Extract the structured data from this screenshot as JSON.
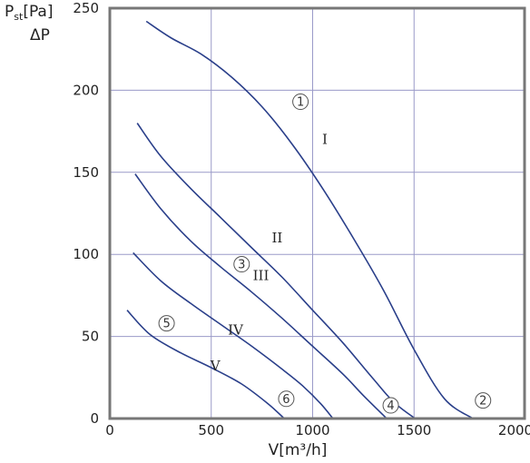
{
  "chart_data": {
    "type": "line",
    "xlabel": "V[m³/h]",
    "ylabel_main": "P",
    "ylabel_sub": "st",
    "ylabel_unit": "[Pa]",
    "ylabel2": "ΔP",
    "xlim": [
      0,
      2000
    ],
    "ylim": [
      0,
      250
    ],
    "x_ticks": [
      0,
      500,
      1000,
      1500,
      2000
    ],
    "y_ticks": [
      0,
      50,
      100,
      150,
      200,
      250
    ],
    "grid": true,
    "series": [
      {
        "name": "I",
        "points": [
          [
            180,
            242
          ],
          [
            300,
            232
          ],
          [
            450,
            222
          ],
          [
            600,
            208
          ],
          [
            750,
            190
          ],
          [
            900,
            167
          ],
          [
            1050,
            140
          ],
          [
            1200,
            110
          ],
          [
            1350,
            78
          ],
          [
            1500,
            42
          ],
          [
            1650,
            12
          ],
          [
            1790,
            0
          ]
        ]
      },
      {
        "name": "II",
        "points": [
          [
            135,
            180
          ],
          [
            250,
            160
          ],
          [
            400,
            140
          ],
          [
            550,
            122
          ],
          [
            700,
            104
          ],
          [
            850,
            86
          ],
          [
            1000,
            66
          ],
          [
            1150,
            46
          ],
          [
            1300,
            24
          ],
          [
            1400,
            10
          ],
          [
            1505,
            0
          ]
        ]
      },
      {
        "name": "III",
        "points": [
          [
            125,
            149
          ],
          [
            250,
            128
          ],
          [
            400,
            108
          ],
          [
            550,
            92
          ],
          [
            700,
            77
          ],
          [
            850,
            61
          ],
          [
            1000,
            44
          ],
          [
            1150,
            27
          ],
          [
            1250,
            14
          ],
          [
            1365,
            0
          ]
        ]
      },
      {
        "name": "IV",
        "points": [
          [
            115,
            101
          ],
          [
            250,
            84
          ],
          [
            400,
            70
          ],
          [
            550,
            57
          ],
          [
            700,
            44
          ],
          [
            850,
            30
          ],
          [
            950,
            20
          ],
          [
            1040,
            9
          ],
          [
            1100,
            0
          ]
        ]
      },
      {
        "name": "V",
        "points": [
          [
            85,
            66
          ],
          [
            200,
            51
          ],
          [
            350,
            40
          ],
          [
            500,
            31
          ],
          [
            650,
            21
          ],
          [
            780,
            9
          ],
          [
            860,
            0
          ]
        ]
      }
    ],
    "curve_labels": [
      {
        "text": "I",
        "x": 1060,
        "y": 170
      },
      {
        "text": "II",
        "x": 825,
        "y": 110
      },
      {
        "text": "III",
        "x": 745,
        "y": 87
      },
      {
        "text": "IV",
        "x": 620,
        "y": 54
      },
      {
        "text": "V",
        "x": 520,
        "y": 32
      }
    ],
    "markers": [
      {
        "text": "1",
        "x": 940,
        "y": 193
      },
      {
        "text": "2",
        "x": 1840,
        "y": 11
      },
      {
        "text": "3",
        "x": 650,
        "y": 94
      },
      {
        "text": "4",
        "x": 1385,
        "y": 8
      },
      {
        "text": "5",
        "x": 280,
        "y": 58
      },
      {
        "text": "6",
        "x": 870,
        "y": 12
      }
    ]
  }
}
